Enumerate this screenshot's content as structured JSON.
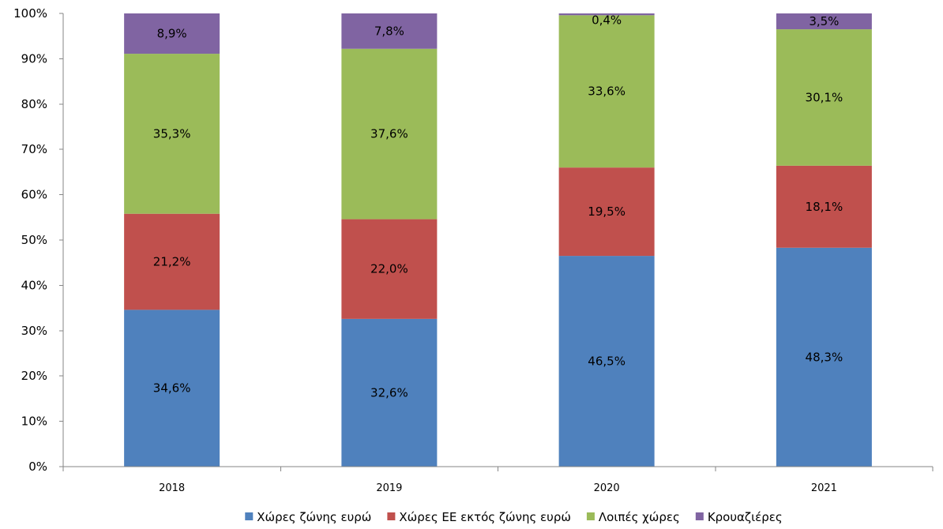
{
  "chart_data": {
    "type": "bar",
    "stacked": true,
    "title": "",
    "xlabel": "",
    "ylabel": "",
    "ylim": [
      0,
      100
    ],
    "y_ticks": [
      "0%",
      "10%",
      "20%",
      "30%",
      "40%",
      "50%",
      "60%",
      "70%",
      "80%",
      "90%",
      "100%"
    ],
    "grid": false,
    "legend_position": "bottom",
    "categories": [
      "2018",
      "2019",
      "2020",
      "2021"
    ],
    "series": [
      {
        "name": "Χώρες ζώνης ευρώ",
        "color": "#4f81bd",
        "values": [
          34.6,
          32.6,
          46.5,
          48.3
        ],
        "labels": [
          "34,6%",
          "32,6%",
          "46,5%",
          "48,3%"
        ]
      },
      {
        "name": "Χώρες ΕΕ εκτός ζώνης ευρώ",
        "color": "#c0504d",
        "values": [
          21.2,
          22.0,
          19.5,
          18.1
        ],
        "labels": [
          "21,2%",
          "22,0%",
          "19,5%",
          "18,1%"
        ]
      },
      {
        "name": "Λοιπές χώρες",
        "color": "#9bbb59",
        "values": [
          35.3,
          37.6,
          33.6,
          30.1
        ],
        "labels": [
          "35,3%",
          "37,6%",
          "33,6%",
          "30,1%"
        ]
      },
      {
        "name": "Κρουαζιέρες",
        "color": "#8064a2",
        "values": [
          8.9,
          7.8,
          0.4,
          3.5
        ],
        "labels": [
          "8,9%",
          "7,8%",
          "0,4%",
          "3,5%"
        ]
      }
    ]
  }
}
